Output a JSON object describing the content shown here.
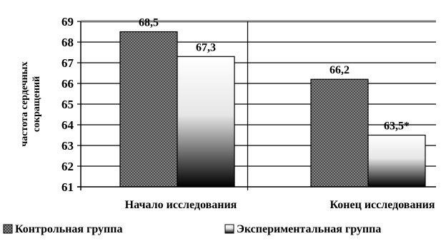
{
  "chart_data": {
    "type": "bar",
    "title": "",
    "xlabel": "",
    "ylabel": "частота сердечных сокращений",
    "ylabel_lines": [
      "частота сердечных",
      "сокращений"
    ],
    "ylim": [
      61,
      69
    ],
    "yticks": [
      61,
      62,
      63,
      64,
      65,
      66,
      67,
      68,
      69
    ],
    "grid": true,
    "legend_position": "bottom",
    "categories": [
      "Начало исследования",
      "Конец исследования"
    ],
    "series": [
      {
        "name": "Контрольная группа",
        "values": [
          68.5,
          66.2
        ],
        "labels": [
          "68,5",
          "66,2"
        ],
        "fill": "crosshatch-gray"
      },
      {
        "name": "Экспериментальная группа",
        "values": [
          67.3,
          63.5
        ],
        "labels": [
          "67,3",
          "63,5*"
        ],
        "fill": "gradient-white-to-black"
      }
    ],
    "colors": {
      "axis": "#000000",
      "grid": "#000000",
      "control_fill": "#8a8a8a",
      "experimental_top": "#ffffff",
      "experimental_bottom": "#000000"
    }
  }
}
